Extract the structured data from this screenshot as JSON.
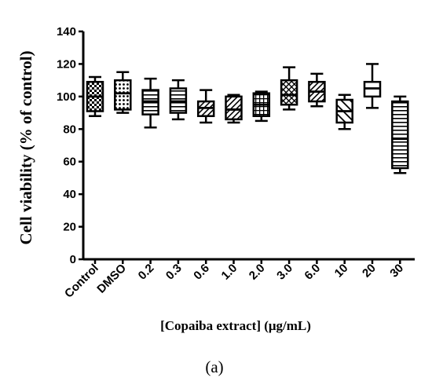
{
  "chart_data": {
    "type": "box",
    "xlabel": "[Copaiba extract] (μg/mL)",
    "ylabel": "Cell viability (% of control)",
    "ylim": [
      0,
      140
    ],
    "yticks": [
      0,
      20,
      40,
      60,
      80,
      100,
      120,
      140
    ],
    "grid": false,
    "legend": "none",
    "caption": "(a)",
    "categories": [
      "Control",
      "DMSO",
      "0.2",
      "0.3",
      "0.6",
      "1.0",
      "2.0",
      "3.0",
      "6.0",
      "10",
      "20",
      "30"
    ],
    "boxes": [
      {
        "category": "Control",
        "min": 88,
        "q1": 91,
        "median": 100,
        "q3": 109,
        "max": 112,
        "pattern": "checker"
      },
      {
        "category": "DMSO",
        "min": 90,
        "q1": 92,
        "median": 102,
        "q3": 110,
        "max": 115,
        "pattern": "dots"
      },
      {
        "category": "0.2",
        "min": 81,
        "q1": 89,
        "median": 97,
        "q3": 104,
        "max": 111,
        "pattern": "hlines"
      },
      {
        "category": "0.3",
        "min": 86,
        "q1": 90,
        "median": 97,
        "q3": 105,
        "max": 110,
        "pattern": "hlines"
      },
      {
        "category": "0.6",
        "min": 84,
        "q1": 88,
        "median": 93,
        "q3": 97,
        "max": 104,
        "pattern": "diag"
      },
      {
        "category": "1.0",
        "min": 84,
        "q1": 86,
        "median": 92,
        "q3": 100,
        "max": 101,
        "pattern": "diag"
      },
      {
        "category": "2.0",
        "min": 85,
        "q1": 88,
        "median": 95,
        "q3": 102,
        "max": 103,
        "pattern": "vhgrid"
      },
      {
        "category": "3.0",
        "min": 92,
        "q1": 95,
        "median": 101,
        "q3": 110,
        "max": 118,
        "pattern": "crosshatch"
      },
      {
        "category": "6.0",
        "min": 94,
        "q1": 97,
        "median": 103,
        "q3": 109,
        "max": 114,
        "pattern": "diag"
      },
      {
        "category": "10",
        "min": 80,
        "q1": 84,
        "median": 91,
        "q3": 98,
        "max": 101,
        "pattern": "diagwide"
      },
      {
        "category": "20",
        "min": 93,
        "q1": 100,
        "median": 105,
        "q3": 109,
        "max": 120,
        "pattern": "empty"
      },
      {
        "category": "30",
        "min": 53,
        "q1": 56,
        "median": 74,
        "q3": 97,
        "max": 100,
        "pattern": "hlines"
      }
    ]
  }
}
